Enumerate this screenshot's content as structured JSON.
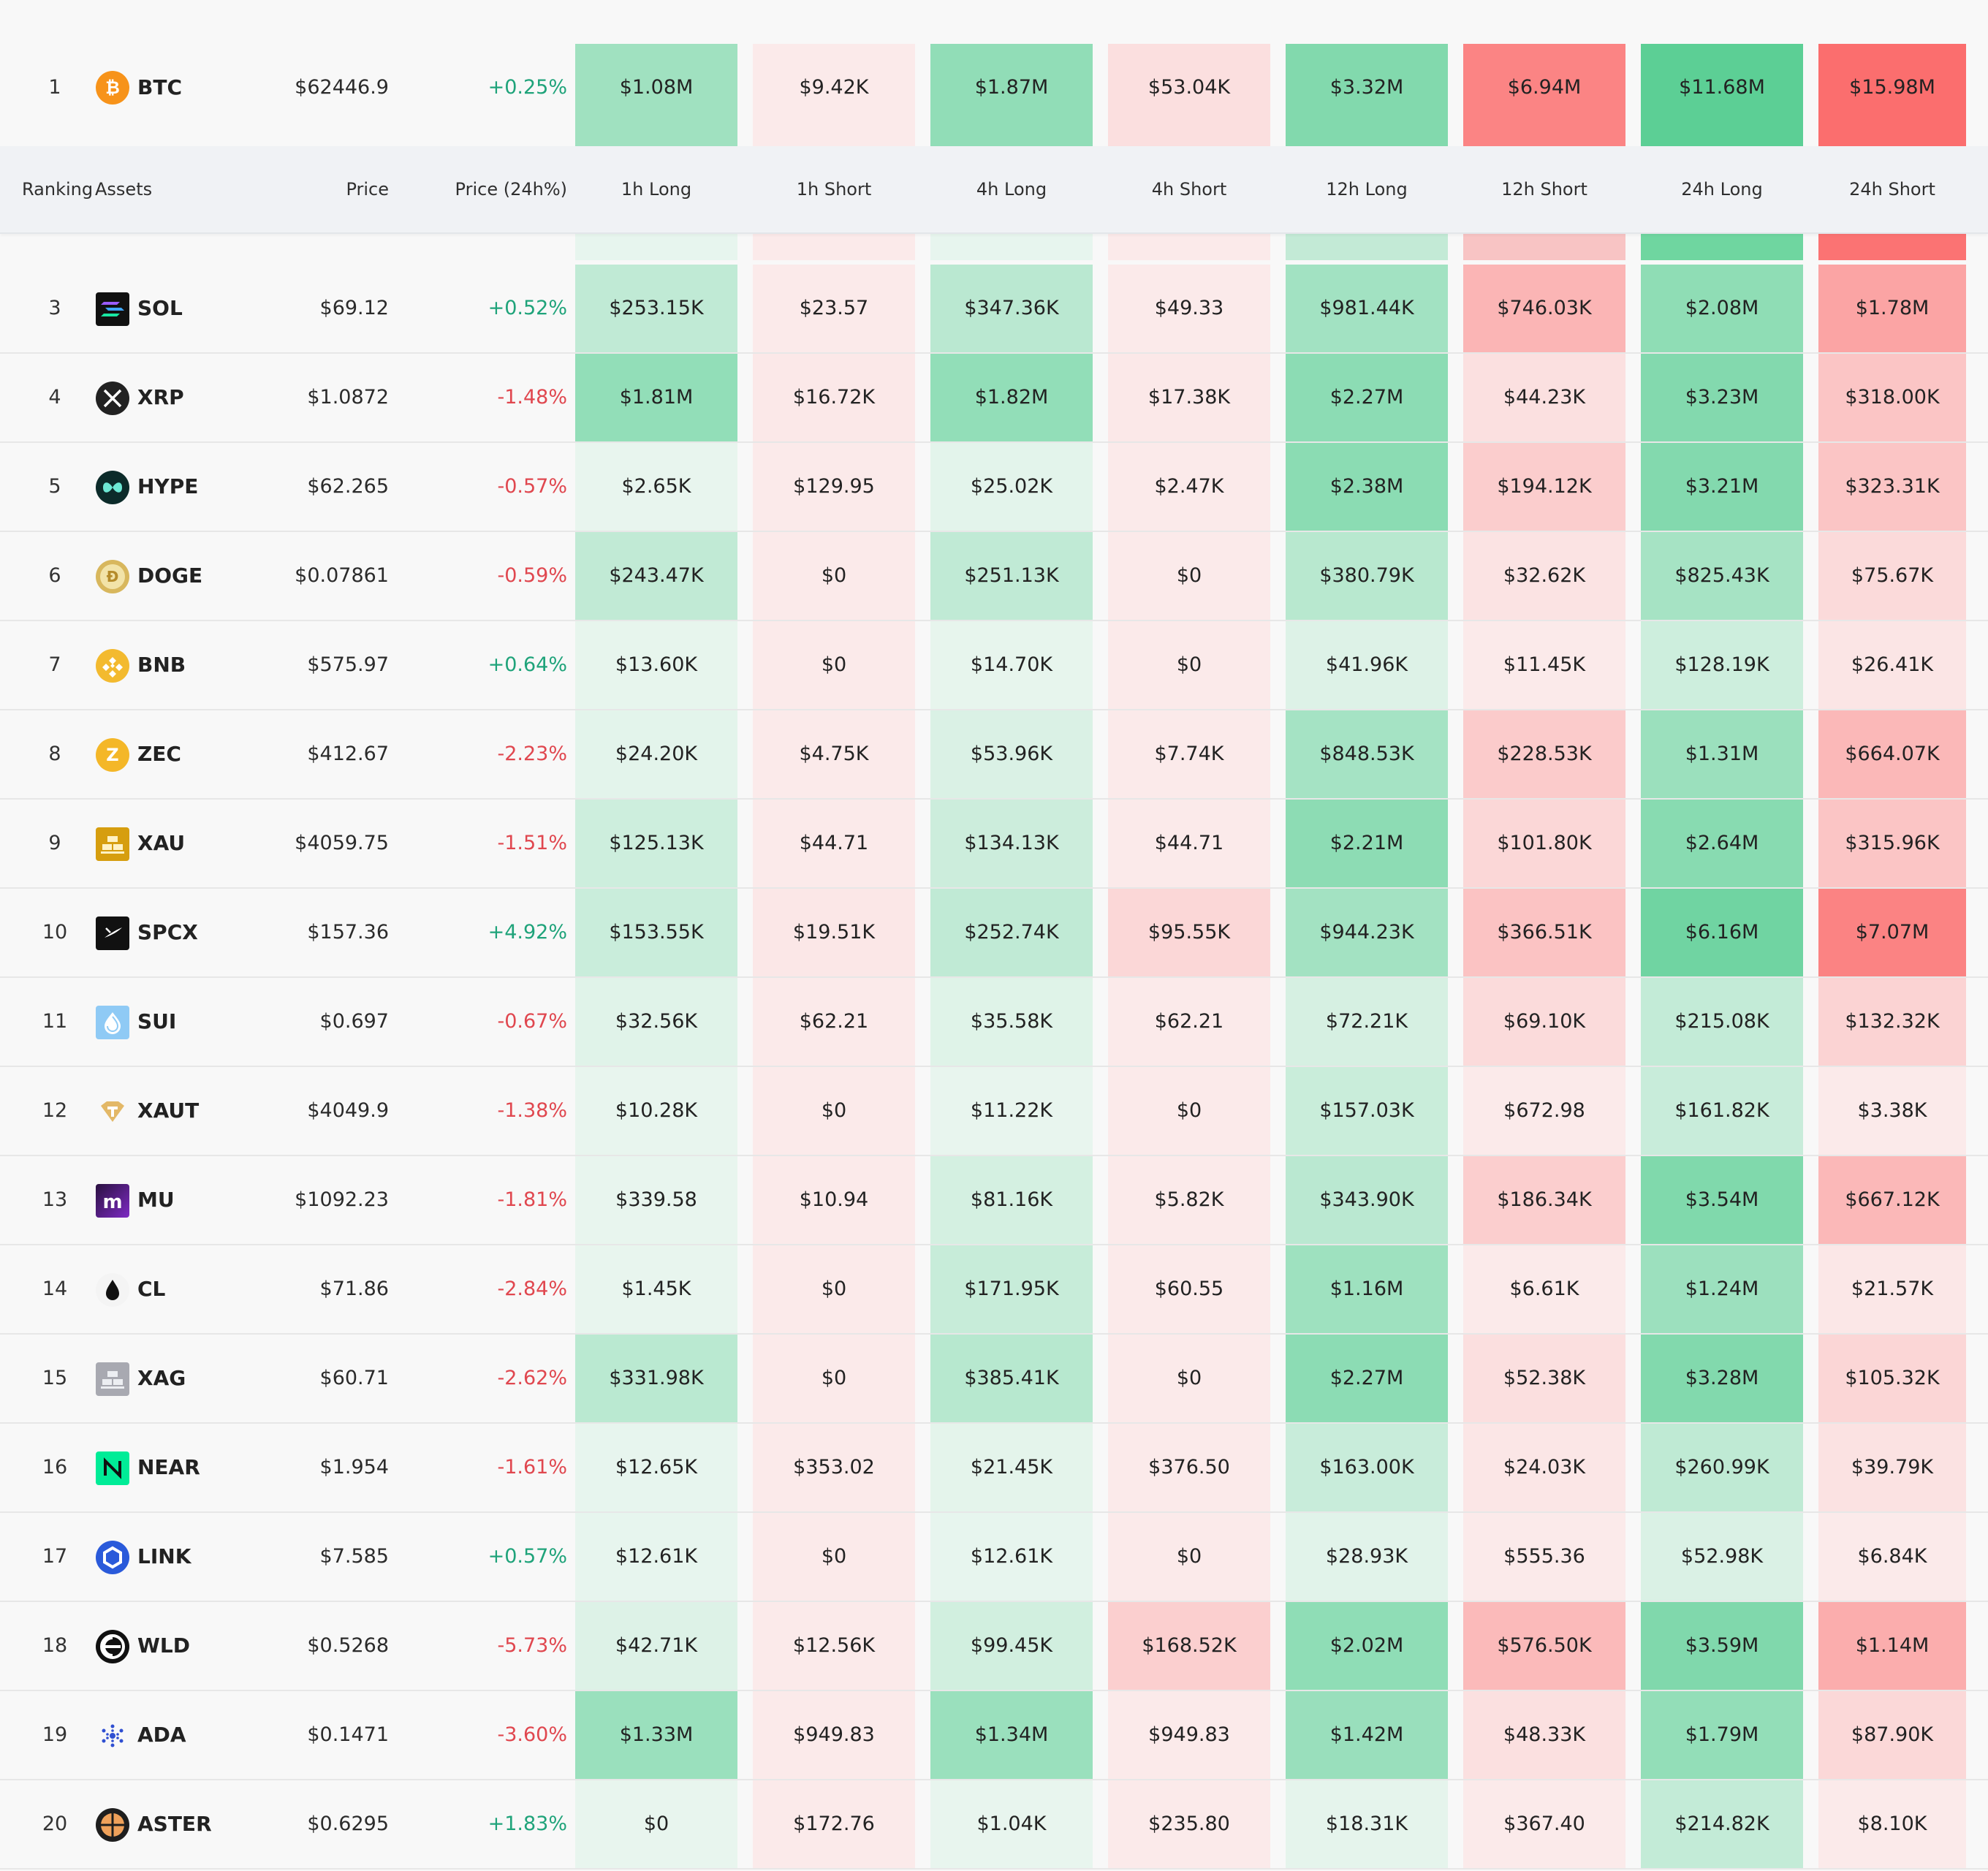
{
  "header": {
    "ranking": "Ranking",
    "assets": "Assets",
    "price": "Price",
    "price_change": "Price (24h%)",
    "h1_long": "1h Long",
    "h1_short": "1h Short",
    "h4_long": "4h Long",
    "h4_short": "4h Short",
    "h12_long": "12h Long",
    "h12_short": "12h Short",
    "h24_long": "24h Long",
    "h24_short": "24h Short"
  },
  "rows": [
    {
      "rank": "1",
      "symbol": "BTC",
      "icon": "bitcoin-icon",
      "price": "$62446.9",
      "change": "+0.25%",
      "values": [
        "$1.08M",
        "$9.42K",
        "$1.87M",
        "$53.04K",
        "$3.32M",
        "$6.94M",
        "$11.68M",
        "$15.98M"
      ]
    },
    {
      "rank": "3",
      "symbol": "SOL",
      "icon": "solana-icon",
      "price": "$69.12",
      "change": "+0.52%",
      "values": [
        "$253.15K",
        "$23.57",
        "$347.36K",
        "$49.33",
        "$981.44K",
        "$746.03K",
        "$2.08M",
        "$1.78M"
      ]
    },
    {
      "rank": "4",
      "symbol": "XRP",
      "icon": "xrp-icon",
      "price": "$1.0872",
      "change": "-1.48%",
      "values": [
        "$1.81M",
        "$16.72K",
        "$1.82M",
        "$17.38K",
        "$2.27M",
        "$44.23K",
        "$3.23M",
        "$318.00K"
      ]
    },
    {
      "rank": "5",
      "symbol": "HYPE",
      "icon": "hyperliquid-icon",
      "price": "$62.265",
      "change": "-0.57%",
      "values": [
        "$2.65K",
        "$129.95",
        "$25.02K",
        "$2.47K",
        "$2.38M",
        "$194.12K",
        "$3.21M",
        "$323.31K"
      ]
    },
    {
      "rank": "6",
      "symbol": "DOGE",
      "icon": "dogecoin-icon",
      "price": "$0.07861",
      "change": "-0.59%",
      "values": [
        "$243.47K",
        "$0",
        "$251.13K",
        "$0",
        "$380.79K",
        "$32.62K",
        "$825.43K",
        "$75.67K"
      ]
    },
    {
      "rank": "7",
      "symbol": "BNB",
      "icon": "bnb-icon",
      "price": "$575.97",
      "change": "+0.64%",
      "values": [
        "$13.60K",
        "$0",
        "$14.70K",
        "$0",
        "$41.96K",
        "$11.45K",
        "$128.19K",
        "$26.41K"
      ]
    },
    {
      "rank": "8",
      "symbol": "ZEC",
      "icon": "zcash-icon",
      "price": "$412.67",
      "change": "-2.23%",
      "values": [
        "$24.20K",
        "$4.75K",
        "$53.96K",
        "$7.74K",
        "$848.53K",
        "$228.53K",
        "$1.31M",
        "$664.07K"
      ]
    },
    {
      "rank": "9",
      "symbol": "XAU",
      "icon": "gold-bars-icon",
      "price": "$4059.75",
      "change": "-1.51%",
      "values": [
        "$125.13K",
        "$44.71",
        "$134.13K",
        "$44.71",
        "$2.21M",
        "$101.80K",
        "$2.64M",
        "$315.96K"
      ]
    },
    {
      "rank": "10",
      "symbol": "SPCX",
      "icon": "spacex-icon",
      "price": "$157.36",
      "change": "+4.92%",
      "values": [
        "$153.55K",
        "$19.51K",
        "$252.74K",
        "$95.55K",
        "$944.23K",
        "$366.51K",
        "$6.16M",
        "$7.07M"
      ]
    },
    {
      "rank": "11",
      "symbol": "SUI",
      "icon": "sui-icon",
      "price": "$0.697",
      "change": "-0.67%",
      "values": [
        "$32.56K",
        "$62.21",
        "$35.58K",
        "$62.21",
        "$72.21K",
        "$69.10K",
        "$215.08K",
        "$132.32K"
      ]
    },
    {
      "rank": "12",
      "symbol": "XAUT",
      "icon": "tether-gold-icon",
      "price": "$4049.9",
      "change": "-1.38%",
      "values": [
        "$10.28K",
        "$0",
        "$11.22K",
        "$0",
        "$157.03K",
        "$672.98",
        "$161.82K",
        "$3.38K"
      ]
    },
    {
      "rank": "13",
      "symbol": "MU",
      "icon": "micron-icon",
      "price": "$1092.23",
      "change": "-1.81%",
      "values": [
        "$339.58",
        "$10.94",
        "$81.16K",
        "$5.82K",
        "$343.90K",
        "$186.34K",
        "$3.54M",
        "$667.12K"
      ]
    },
    {
      "rank": "14",
      "symbol": "CL",
      "icon": "oil-drop-icon",
      "price": "$71.86",
      "change": "-2.84%",
      "values": [
        "$1.45K",
        "$0",
        "$171.95K",
        "$60.55",
        "$1.16M",
        "$6.61K",
        "$1.24M",
        "$21.57K"
      ]
    },
    {
      "rank": "15",
      "symbol": "XAG",
      "icon": "silver-bars-icon",
      "price": "$60.71",
      "change": "-2.62%",
      "values": [
        "$331.98K",
        "$0",
        "$385.41K",
        "$0",
        "$2.27M",
        "$52.38K",
        "$3.28M",
        "$105.32K"
      ]
    },
    {
      "rank": "16",
      "symbol": "NEAR",
      "icon": "near-icon",
      "price": "$1.954",
      "change": "-1.61%",
      "values": [
        "$12.65K",
        "$353.02",
        "$21.45K",
        "$376.50",
        "$163.00K",
        "$24.03K",
        "$260.99K",
        "$39.79K"
      ]
    },
    {
      "rank": "17",
      "symbol": "LINK",
      "icon": "chainlink-icon",
      "price": "$7.585",
      "change": "+0.57%",
      "values": [
        "$12.61K",
        "$0",
        "$12.61K",
        "$0",
        "$28.93K",
        "$555.36",
        "$52.98K",
        "$6.84K"
      ]
    },
    {
      "rank": "18",
      "symbol": "WLD",
      "icon": "worldcoin-icon",
      "price": "$0.5268",
      "change": "-5.73%",
      "values": [
        "$42.71K",
        "$12.56K",
        "$99.45K",
        "$168.52K",
        "$2.02M",
        "$576.50K",
        "$3.59M",
        "$1.14M"
      ]
    },
    {
      "rank": "19",
      "symbol": "ADA",
      "icon": "cardano-icon",
      "price": "$0.1471",
      "change": "-3.60%",
      "values": [
        "$1.33M",
        "$949.83",
        "$1.34M",
        "$949.83",
        "$1.42M",
        "$48.33K",
        "$1.79M",
        "$87.90K"
      ]
    },
    {
      "rank": "20",
      "symbol": "ASTER",
      "icon": "aster-icon",
      "price": "$0.6295",
      "change": "+1.83%",
      "values": [
        "$0",
        "$172.76",
        "$1.04K",
        "$235.80",
        "$18.31K",
        "$367.40",
        "$214.82K",
        "$8.10K"
      ]
    }
  ],
  "colors": {
    "positive_text": "#1fa37a",
    "negative_text": "#e0474f",
    "long_heat": "#52cc8f",
    "short_heat": "#fb6e6e"
  }
}
